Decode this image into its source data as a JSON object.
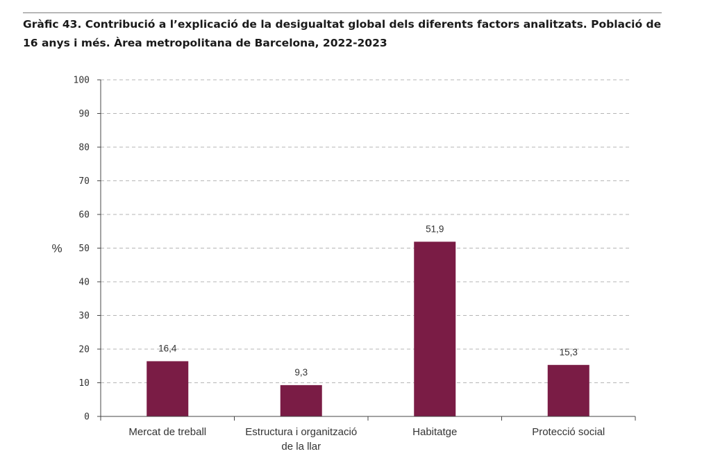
{
  "header": {
    "title": "Gràfic 43. Contribució a l’explicació de la desigualtat global dels diferents factors analitzats. Població de 16 anys i més. Àrea metropolitana de Barcelona, 2022-2023"
  },
  "chart_data": {
    "type": "bar",
    "title": "Gràfic 43. Contribució a l’explicació de la desigualtat global dels diferents factors analitzats. Població de 16 anys i més. Àrea metropolitana de Barcelona, 2022-2023",
    "categories": [
      [
        "Mercat de treball"
      ],
      [
        "Estructura i organització",
        "de la llar"
      ],
      [
        "Habitatge"
      ],
      [
        "Protecció social"
      ]
    ],
    "values": [
      16.4,
      9.3,
      51.9,
      15.3
    ],
    "value_labels": [
      "16,4",
      "9,3",
      "51,9",
      "15,3"
    ],
    "xlabel": "",
    "ylabel": "%",
    "ylim": [
      0,
      100
    ],
    "yticks": [
      0,
      10,
      20,
      30,
      40,
      50,
      60,
      70,
      80,
      90,
      100
    ],
    "grid": true,
    "colors": {
      "bar": "#7a1c45",
      "grid": "#b5b5b5",
      "axis": "#444444"
    }
  }
}
